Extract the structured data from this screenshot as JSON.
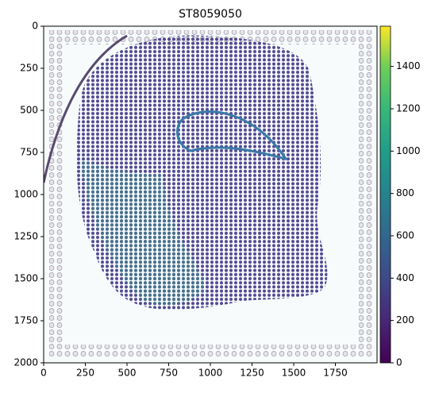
{
  "chart_data": {
    "type": "image",
    "title": "ST8059050",
    "xlim": [
      0,
      2000
    ],
    "xticks": [
      0,
      250,
      500,
      750,
      1000,
      1250,
      1500,
      1750
    ],
    "ylim": [
      2000,
      0
    ],
    "yticks": [
      0,
      250,
      500,
      750,
      1000,
      1250,
      1500,
      1750,
      2000
    ],
    "colorbar": {
      "colormap": "viridis",
      "lim": [
        0,
        1590
      ],
      "ticks": [
        0,
        200,
        400,
        600,
        800,
        1000,
        1200,
        1400
      ]
    }
  }
}
